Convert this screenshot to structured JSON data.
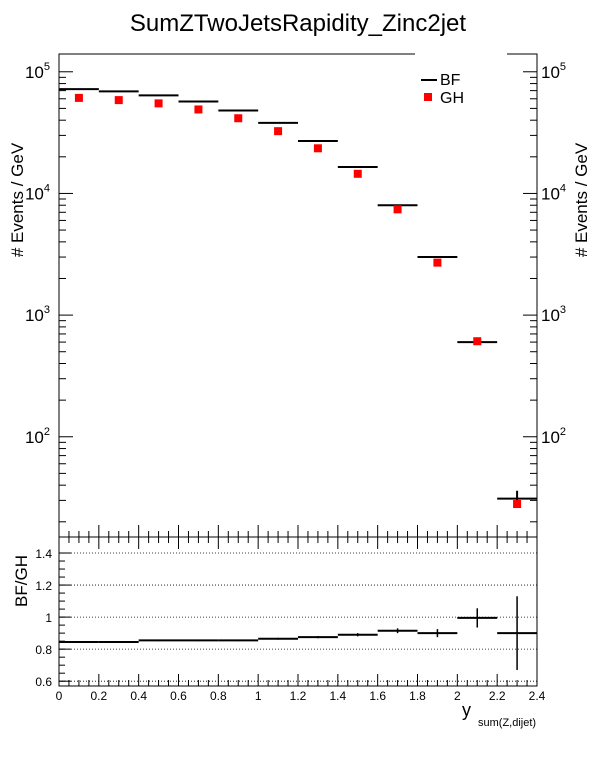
{
  "chart_data": [
    {
      "type": "line",
      "title": "SumZTwoJetsRapidity_Zinc2jet",
      "ylabel": "# Events / GeV",
      "ylabel_right": "# Events / GeV",
      "xlim": [
        0,
        2.4
      ],
      "ylim": [
        15,
        140000
      ],
      "yscale": "log",
      "y_ticks": [
        {
          "value": 100,
          "base": "10",
          "exp": "2"
        },
        {
          "value": 1000,
          "base": "10",
          "exp": "3"
        },
        {
          "value": 10000,
          "base": "10",
          "exp": "4"
        },
        {
          "value": 100000,
          "base": "10",
          "exp": "5"
        }
      ],
      "legend_position": "top-right",
      "series": [
        {
          "name": "BF",
          "style": "horizontal-bins",
          "color": "#000000",
          "bins": [
            {
              "xlo": 0.0,
              "xhi": 0.2,
              "y": 72000,
              "err": 0
            },
            {
              "xlo": 0.2,
              "xhi": 0.4,
              "y": 69000,
              "err": 0
            },
            {
              "xlo": 0.4,
              "xhi": 0.6,
              "y": 64000,
              "err": 0
            },
            {
              "xlo": 0.6,
              "xhi": 0.8,
              "y": 57000,
              "err": 0
            },
            {
              "xlo": 0.8,
              "xhi": 1.0,
              "y": 48000,
              "err": 0
            },
            {
              "xlo": 1.0,
              "xhi": 1.2,
              "y": 38000,
              "err": 0
            },
            {
              "xlo": 1.2,
              "xhi": 1.4,
              "y": 27000,
              "err": 0
            },
            {
              "xlo": 1.4,
              "xhi": 1.6,
              "y": 16500,
              "err": 0
            },
            {
              "xlo": 1.6,
              "xhi": 1.8,
              "y": 8000,
              "err": 0
            },
            {
              "xlo": 1.8,
              "xhi": 2.0,
              "y": 3000,
              "err": 0
            },
            {
              "xlo": 2.0,
              "xhi": 2.2,
              "y": 600,
              "err": 30
            },
            {
              "xlo": 2.2,
              "xhi": 2.4,
              "y": 31,
              "err": 5
            }
          ]
        },
        {
          "name": "GH",
          "style": "markers",
          "color": "#ff0000",
          "x": [
            0.1,
            0.3,
            0.5,
            0.7,
            0.9,
            1.1,
            1.3,
            1.5,
            1.7,
            1.9,
            2.1,
            2.3
          ],
          "y": [
            61000,
            58500,
            55000,
            49000,
            41500,
            32500,
            23500,
            14500,
            7400,
            2700,
            610,
            28
          ]
        }
      ]
    },
    {
      "type": "line",
      "xlabel": "y",
      "xlabel_subscript": "sum(Z,dijet)",
      "ylabel": "BF/GH",
      "xlim": [
        0,
        2.4
      ],
      "ylim": [
        0.57,
        1.5
      ],
      "grid": "horizontal-dotted",
      "x_ticks": [
        "0",
        "0.2",
        "0.4",
        "0.6",
        "0.8",
        "1",
        "1.2",
        "1.4",
        "1.6",
        "1.8",
        "2",
        "2.2",
        "2.4"
      ],
      "y_ticks": [
        "0.6",
        "0.8",
        "1",
        "1.2",
        "1.4"
      ],
      "series": [
        {
          "name": "",
          "style": "horizontal-bins",
          "color": "#000000",
          "bins": [
            {
              "xlo": 0.0,
              "xhi": 0.2,
              "y": 0.845,
              "err": 0.005
            },
            {
              "xlo": 0.2,
              "xhi": 0.4,
              "y": 0.845,
              "err": 0.005
            },
            {
              "xlo": 0.4,
              "xhi": 0.6,
              "y": 0.855,
              "err": 0.005
            },
            {
              "xlo": 0.6,
              "xhi": 0.8,
              "y": 0.855,
              "err": 0.005
            },
            {
              "xlo": 0.8,
              "xhi": 1.0,
              "y": 0.855,
              "err": 0.005
            },
            {
              "xlo": 1.0,
              "xhi": 1.2,
              "y": 0.865,
              "err": 0.006
            },
            {
              "xlo": 1.2,
              "xhi": 1.4,
              "y": 0.875,
              "err": 0.007
            },
            {
              "xlo": 1.4,
              "xhi": 1.6,
              "y": 0.89,
              "err": 0.01
            },
            {
              "xlo": 1.6,
              "xhi": 1.8,
              "y": 0.915,
              "err": 0.015
            },
            {
              "xlo": 1.8,
              "xhi": 2.0,
              "y": 0.9,
              "err": 0.025
            },
            {
              "xlo": 2.0,
              "xhi": 2.2,
              "y": 0.995,
              "err": 0.06
            },
            {
              "xlo": 2.2,
              "xhi": 2.4,
              "y": 0.9,
              "err": 0.23
            }
          ]
        }
      ]
    }
  ]
}
